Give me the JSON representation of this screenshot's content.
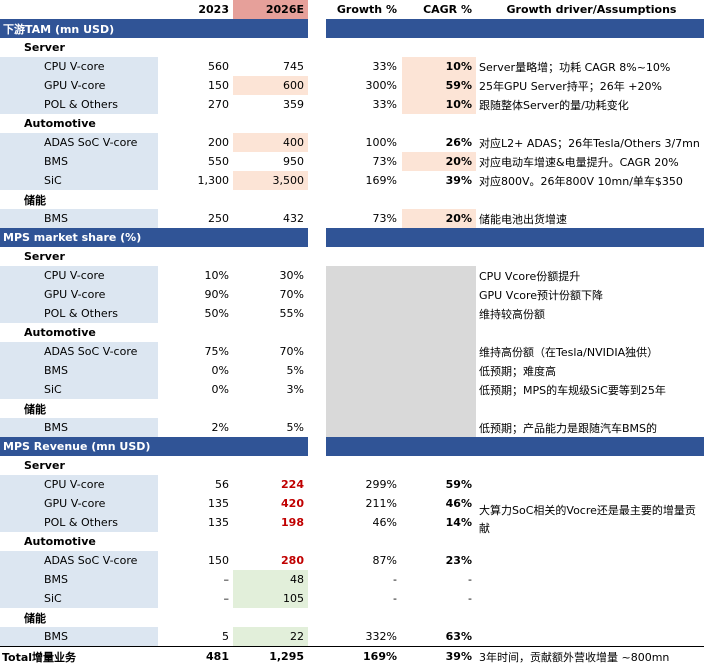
{
  "header": {
    "c2023": "2023",
    "c2026": "2026E",
    "growth": "Growth %",
    "cagr": "CAGR %",
    "driver": "Growth driver/Assumptions"
  },
  "tam": {
    "title": "下游TAM (mn USD)",
    "server": {
      "label": "Server",
      "rows": [
        {
          "name": "CPU V-core",
          "v2023": "560",
          "v2026": "745",
          "growth": "33%",
          "cagr": "10%",
          "driver": "Server量略增；功耗 CAGR 8%~10%"
        },
        {
          "name": "GPU V-core",
          "v2023": "150",
          "v2026": "600",
          "growth": "300%",
          "cagr": "59%",
          "driver": "25年GPU Server持平；26年 +20%"
        },
        {
          "name": "POL & Others",
          "v2023": "270",
          "v2026": "359",
          "growth": "33%",
          "cagr": "10%",
          "driver": "跟随整体Server的量/功耗变化"
        }
      ]
    },
    "automotive": {
      "label": "Automotive",
      "rows": [
        {
          "name": "ADAS SoC V-core",
          "v2023": "200",
          "v2026": "400",
          "growth": "100%",
          "cagr": "26%",
          "driver": "对应L2+ ADAS；26年Tesla/Others 3/7mn"
        },
        {
          "name": "BMS",
          "v2023": "550",
          "v2026": "950",
          "growth": "73%",
          "cagr": "20%",
          "driver": "对应电动车增速&电量提升。CAGR 20%"
        },
        {
          "name": "SiC",
          "v2023": "1,300",
          "v2026": "3,500",
          "growth": "169%",
          "cagr": "39%",
          "driver": "对应800V。26年800V 10mn/单车$350"
        }
      ]
    },
    "storage": {
      "label": "储能",
      "rows": [
        {
          "name": "BMS",
          "v2023": "250",
          "v2026": "432",
          "growth": "73%",
          "cagr": "20%",
          "driver": "储能电池出货增速"
        }
      ]
    }
  },
  "share": {
    "title": "MPS market share (%)",
    "server": {
      "label": "Server",
      "rows": [
        {
          "name": "CPU V-core",
          "v2023": "10%",
          "v2026": "30%",
          "driver": "CPU Vcore份额提升"
        },
        {
          "name": "GPU V-core",
          "v2023": "90%",
          "v2026": "70%",
          "driver": "GPU Vcore预计份额下降"
        },
        {
          "name": "POL & Others",
          "v2023": "50%",
          "v2026": "55%",
          "driver": "维持较高份额"
        }
      ]
    },
    "automotive": {
      "label": "Automotive",
      "rows": [
        {
          "name": "ADAS SoC V-core",
          "v2023": "75%",
          "v2026": "70%",
          "driver": "维持高份额（在Tesla/NVIDIA独供）"
        },
        {
          "name": "BMS",
          "v2023": "0%",
          "v2026": "5%",
          "driver": "低预期；难度高"
        },
        {
          "name": "SiC",
          "v2023": "0%",
          "v2026": "3%",
          "driver": "低预期；MPS的车规级SiC要等到25年"
        }
      ]
    },
    "storage": {
      "label": "储能",
      "rows": [
        {
          "name": "BMS",
          "v2023": "2%",
          "v2026": "5%",
          "driver": "低预期；产品能力是跟随汽车BMS的"
        }
      ]
    }
  },
  "revenue": {
    "title": "MPS Revenue (mn USD)",
    "merged_driver": "大算力SoC相关的Vocre还是最主要的增量贡献",
    "server": {
      "label": "Server",
      "rows": [
        {
          "name": "CPU V-core",
          "v2023": "56",
          "v2026": "224",
          "growth": "299%",
          "cagr": "59%"
        },
        {
          "name": "GPU V-core",
          "v2023": "135",
          "v2026": "420",
          "growth": "211%",
          "cagr": "46%"
        },
        {
          "name": "POL & Others",
          "v2023": "135",
          "v2026": "198",
          "growth": "46%",
          "cagr": "14%"
        }
      ]
    },
    "automotive": {
      "label": "Automotive",
      "rows": [
        {
          "name": "ADAS SoC V-core",
          "v2023": "150",
          "v2026": "280",
          "growth": "87%",
          "cagr": "23%"
        },
        {
          "name": "BMS",
          "v2023": "–",
          "v2026": "48",
          "growth": "-",
          "cagr": "-"
        },
        {
          "name": "SiC",
          "v2023": "–",
          "v2026": "105",
          "growth": "-",
          "cagr": "-"
        }
      ]
    },
    "storage": {
      "label": "储能",
      "rows": [
        {
          "name": "BMS",
          "v2023": "5",
          "v2026": "22",
          "growth": "332%",
          "cagr": "63%"
        }
      ]
    }
  },
  "total": {
    "label": "Total增量业务",
    "v2023": "481",
    "v2026": "1,295",
    "growth": "169%",
    "cagr": "39%",
    "driver": "3年时间，贡献额外营收增量 ~800mn"
  },
  "colors": {
    "section_bar": "#305496",
    "header_2026": "#e6a09a",
    "label_fill": "#dce6f1",
    "highlight_pink": "#fce4d6",
    "highlight_green": "#e2efda",
    "grey_block": "#d9d9d9",
    "red_value": "#c00000"
  }
}
